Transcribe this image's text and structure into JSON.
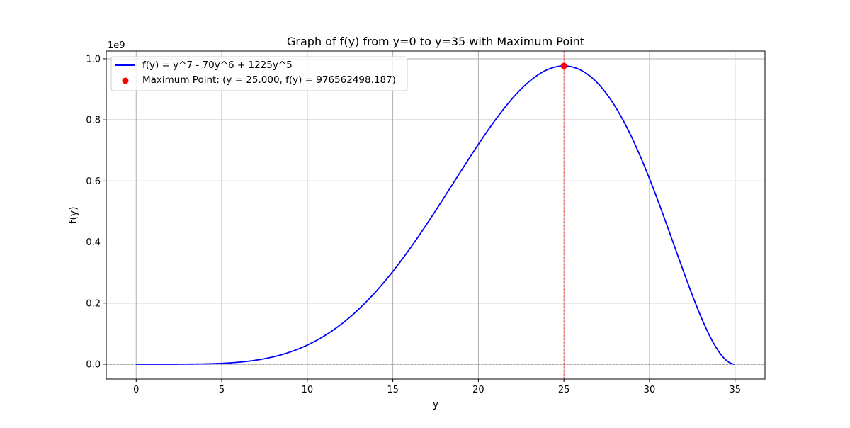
{
  "chart_data": {
    "type": "line",
    "title": "Graph of f(y) from y=0 to y=35 with Maximum Point",
    "xlabel": "y",
    "ylabel": "f(y)",
    "y_offset_label": "1e9",
    "xlim": [
      -1.75,
      36.75
    ],
    "ylim": [
      -0.04882812,
      1.02539063
    ],
    "x_ticks": [
      0,
      5,
      10,
      15,
      20,
      25,
      30,
      35
    ],
    "x_tick_labels": [
      "0",
      "5",
      "10",
      "15",
      "20",
      "25",
      "30",
      "35"
    ],
    "y_ticks": [
      0.0,
      0.2,
      0.4,
      0.6,
      0.8,
      1.0
    ],
    "y_tick_labels": [
      "0.0",
      "0.2",
      "0.4",
      "0.6",
      "0.8",
      "1.0"
    ],
    "grid": true,
    "legend_position": "upper-left",
    "series": [
      {
        "name": "f(y) = y^7 - 70y^6 + 1225y^5",
        "kind": "line",
        "color": "#0000ff",
        "function": "y^7 - 70y^6 + 1225y^5",
        "x_range": [
          0,
          35
        ],
        "y_scale": 1e-09
      },
      {
        "name": "Maximum Point: (y = 25.000, f(y) = 976562498.187)",
        "kind": "scatter",
        "color": "#ff0000",
        "x": [
          25.0
        ],
        "y": [
          0.976562498187
        ]
      }
    ],
    "reference_lines": [
      {
        "orientation": "horizontal",
        "value": 0,
        "color": "#000000",
        "style": "dashed"
      },
      {
        "orientation": "vertical",
        "value": 25,
        "color": "#ff0000",
        "style": "dashed"
      }
    ]
  }
}
